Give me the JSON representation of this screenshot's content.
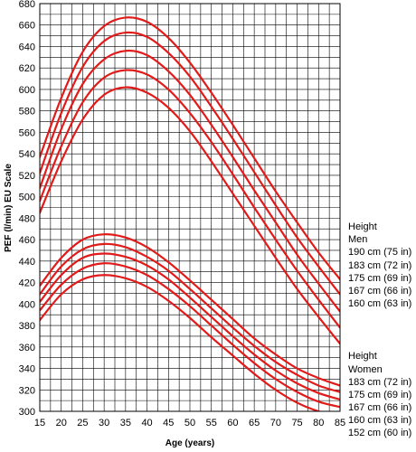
{
  "chart_data": {
    "type": "line",
    "title": "",
    "xlabel": "Age (years)",
    "ylabel": "PEF (l/min) EU Scale",
    "xlim": [
      15,
      85
    ],
    "ylim": [
      300,
      680
    ],
    "x_ticks": [
      15,
      20,
      25,
      30,
      35,
      40,
      45,
      50,
      55,
      60,
      65,
      70,
      75,
      80,
      85
    ],
    "y_ticks": [
      300,
      320,
      340,
      360,
      380,
      400,
      420,
      440,
      460,
      480,
      500,
      520,
      540,
      560,
      580,
      600,
      620,
      640,
      660,
      680
    ],
    "grid": true,
    "line_color": "#e11a1a",
    "x": [
      15,
      20,
      25,
      30,
      35,
      40,
      45,
      50,
      55,
      60,
      65,
      70,
      75,
      80,
      85
    ],
    "groups": [
      {
        "heading": "Height",
        "subheading": "Men",
        "series": [
          {
            "name": "190 cm (75 in)",
            "values": [
              537,
              592,
              635,
              659,
              667,
              663,
              648,
              625,
              597,
              567,
              536,
              505,
              476,
              448,
              423
            ]
          },
          {
            "name": "183 cm (72 in)",
            "values": [
              522,
              578,
              621,
              645,
              653,
              649,
              634,
              612,
              584,
              554,
              523,
              492,
              462,
              435,
              409
            ]
          },
          {
            "name": "175 cm (69 in)",
            "values": [
              508,
              563,
              605,
              628,
              636,
              632,
              617,
              595,
              567,
              537,
              506,
              476,
              446,
              419,
              393
            ]
          },
          {
            "name": "167 cm (66 in)",
            "values": [
              496,
              547,
              588,
              611,
              618,
              614,
              600,
              578,
              551,
              521,
              490,
              460,
              431,
              404,
              378
            ]
          },
          {
            "name": "160 cm (63 in)",
            "values": [
              485,
              533,
              572,
              595,
              602,
              597,
              583,
              561,
              533,
              503,
              473,
              443,
              414,
              388,
              363
            ]
          }
        ]
      },
      {
        "heading": "Height",
        "subheading": "Women",
        "series": [
          {
            "name": "183 cm (72 in)",
            "values": [
              417,
              443,
              460,
              465,
              462,
              453,
              439,
              422,
              404,
              386,
              368,
              353,
              340,
              331,
              324
            ]
          },
          {
            "name": "175 cm (69 in)",
            "values": [
              409,
              435,
              451,
              456,
              453,
              444,
              431,
              414,
              396,
              378,
              361,
              346,
              334,
              324,
              318
            ]
          },
          {
            "name": "167 cm (66 in)",
            "values": [
              402,
              427,
              443,
              447,
              444,
              436,
              423,
              406,
              388,
              370,
              353,
              338,
              326,
              317,
              311
            ]
          },
          {
            "name": "160 cm (63 in)",
            "values": [
              394,
              418,
              433,
              438,
              435,
              427,
              414,
              398,
              380,
              362,
              345,
              330,
              318,
              309,
              304
            ]
          },
          {
            "name": "152 cm (60 in)",
            "values": [
              385,
              409,
              423,
              427,
              424,
              416,
              403,
              387,
              369,
              352,
              335,
              320,
              308,
              300,
              296
            ]
          }
        ]
      }
    ]
  }
}
